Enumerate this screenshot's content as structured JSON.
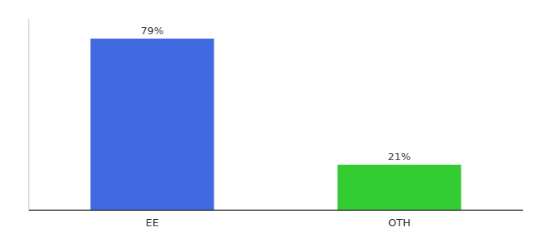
{
  "chart_data": {
    "type": "bar",
    "categories": [
      "EE",
      "OTH"
    ],
    "values": [
      79,
      21
    ],
    "value_labels": [
      "79%",
      "21%"
    ],
    "colors": [
      "#4169e1",
      "#33cc33"
    ],
    "ylim": [
      0,
      88
    ],
    "data_labels": true,
    "tick_labels": "x"
  }
}
